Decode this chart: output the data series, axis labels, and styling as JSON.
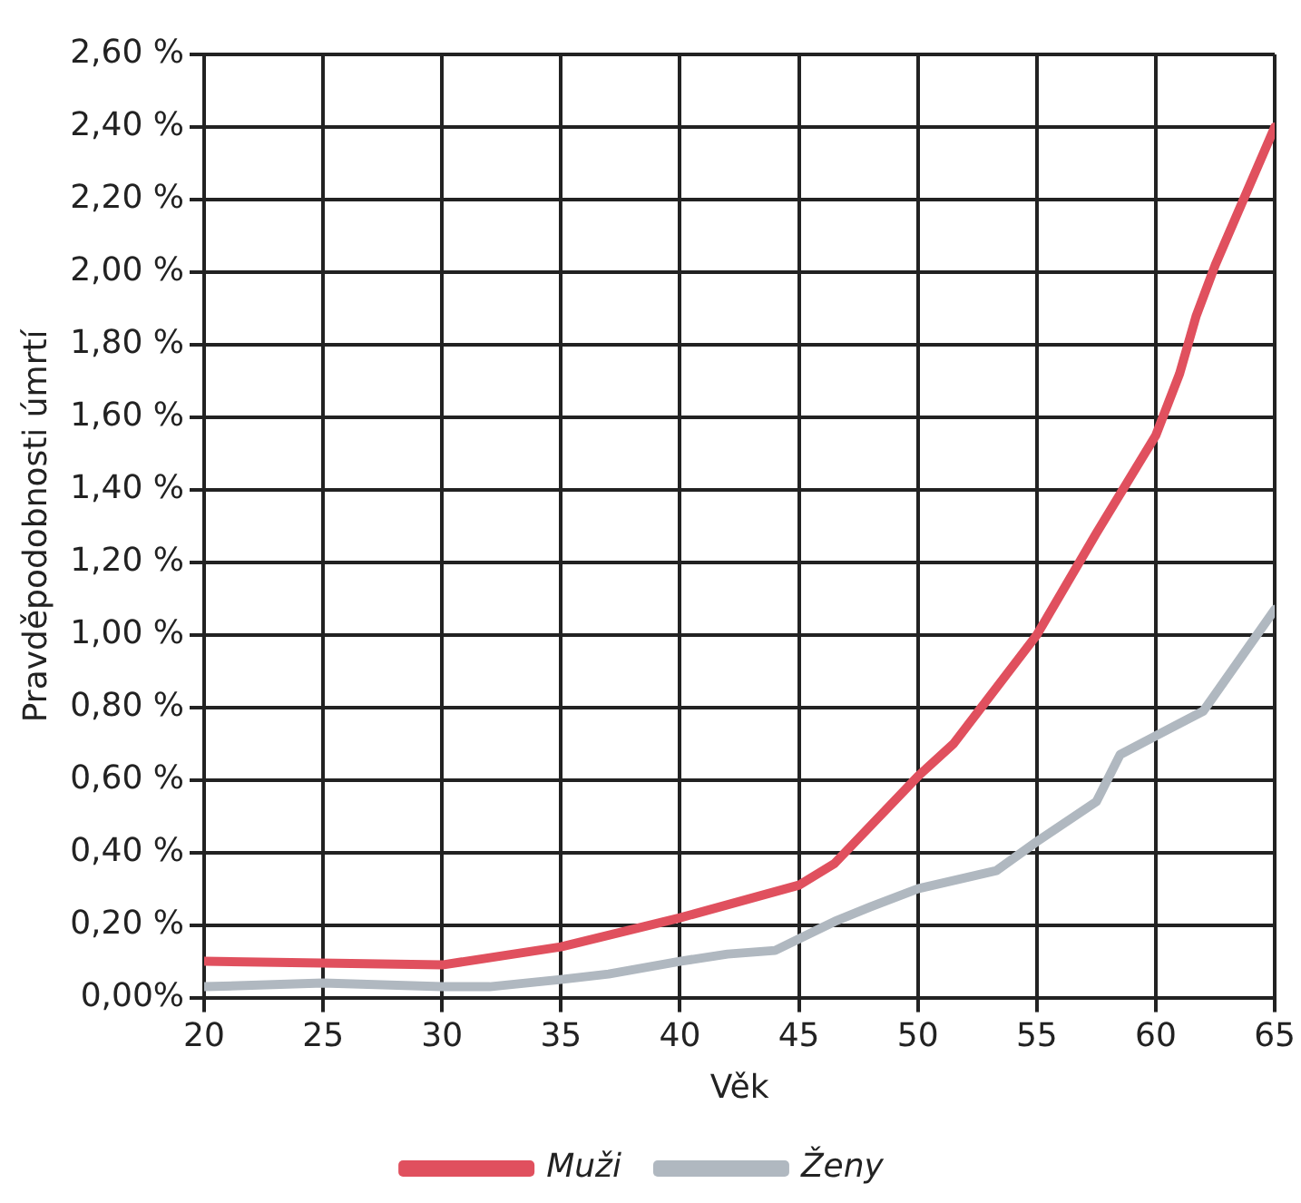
{
  "chart_data": {
    "type": "line",
    "xlabel": "Věk",
    "ylabel": "Pravděpodobnosti úmrtí",
    "xlim": [
      20,
      65
    ],
    "xticks": [
      20,
      25,
      30,
      35,
      40,
      45,
      50,
      55,
      60,
      65
    ],
    "ylim": [
      0,
      2.6
    ],
    "yticks": [
      {
        "value": 0,
        "label": "0,00%"
      },
      {
        "value": 0.2,
        "label": "0,20 %"
      },
      {
        "value": 0.4,
        "label": "0,40 %"
      },
      {
        "value": 0.6,
        "label": "0,60 %"
      },
      {
        "value": 0.8,
        "label": "0,80 %"
      },
      {
        "value": 1,
        "label": "1,00 %"
      },
      {
        "value": 1.2,
        "label": "1,20 %"
      },
      {
        "value": 1.4,
        "label": "1,40 %"
      },
      {
        "value": 1.6,
        "label": "1,60 %"
      },
      {
        "value": 1.8,
        "label": "1,80 %"
      },
      {
        "value": 2,
        "label": "2,00 %"
      },
      {
        "value": 2.2,
        "label": "2,20 %"
      },
      {
        "value": 2.4,
        "label": "2,40 %"
      },
      {
        "value": 2.6,
        "label": "2,60 %"
      }
    ],
    "grid": true,
    "legend": "bottom",
    "marker": "none",
    "line_style": "solid",
    "series": [
      {
        "name": "Muži",
        "color": "#e0505e",
        "x": [
          20,
          30,
          35,
          40,
          45,
          46.5,
          50,
          51.5,
          55,
          57.5,
          60,
          61,
          61.7,
          62.5,
          65
        ],
        "values": [
          0.1,
          0.09,
          0.14,
          0.22,
          0.31,
          0.37,
          0.61,
          0.7,
          1.0,
          1.28,
          1.55,
          1.72,
          1.88,
          2.02,
          2.4
        ]
      },
      {
        "name": "Ženy",
        "color": "#b0b8c0",
        "x": [
          20,
          25,
          30,
          32,
          35,
          37,
          40,
          42,
          44,
          46.5,
          48,
          50,
          53.3,
          55,
          57.5,
          58.5,
          62,
          65
        ],
        "values": [
          0.03,
          0.04,
          0.03,
          0.03,
          0.05,
          0.065,
          0.1,
          0.12,
          0.13,
          0.21,
          0.25,
          0.3,
          0.35,
          0.43,
          0.54,
          0.67,
          0.79,
          1.07
        ]
      }
    ]
  }
}
